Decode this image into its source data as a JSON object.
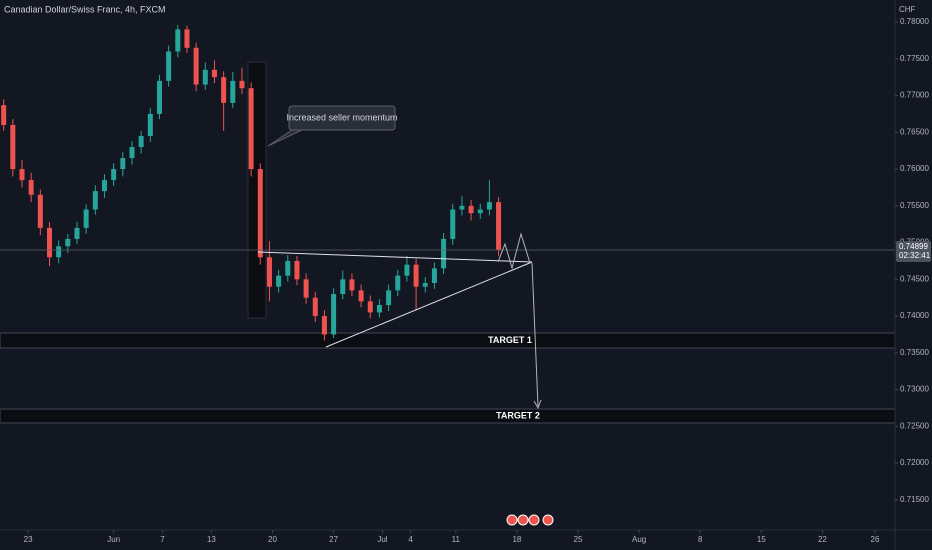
{
  "chart_data": {
    "type": "candlestick",
    "title": "Canadian Dollar/Swiss Franc, 4h, FXCM",
    "currency": "CHF",
    "up_color": "#26a69a",
    "down_color": "#ef5350",
    "grid": false,
    "xlim": [
      -2.3,
      70.94
    ],
    "xticks": [
      {
        "value": 0,
        "label": "23"
      },
      {
        "value": 7,
        "label": "Jun"
      },
      {
        "value": 11,
        "label": "7"
      },
      {
        "value": 15,
        "label": "13"
      },
      {
        "value": 20,
        "label": "20"
      },
      {
        "value": 25,
        "label": "27"
      },
      {
        "value": 29,
        "label": "Jul"
      },
      {
        "value": 31.3,
        "label": "4"
      },
      {
        "value": 35,
        "label": "11"
      },
      {
        "value": 40,
        "label": "18"
      },
      {
        "value": 45,
        "label": "25"
      },
      {
        "value": 50,
        "label": "Aug"
      },
      {
        "value": 55,
        "label": "8"
      },
      {
        "value": 60,
        "label": "15"
      },
      {
        "value": 65,
        "label": "22"
      },
      {
        "value": 69.3,
        "label": "26"
      }
    ],
    "ylim": [
      0.7109,
      0.783
    ],
    "yticks": [
      {
        "value": 0.78,
        "label": "0.78000"
      },
      {
        "value": 0.775,
        "label": "0.77500"
      },
      {
        "value": 0.77,
        "label": "0.77000"
      },
      {
        "value": 0.765,
        "label": "0.76500"
      },
      {
        "value": 0.76,
        "label": "0.76000"
      },
      {
        "value": 0.755,
        "label": "0.75500"
      },
      {
        "value": 0.75,
        "label": "0.75000"
      },
      {
        "value": 0.745,
        "label": "0.74500"
      },
      {
        "value": 0.74,
        "label": "0.74000"
      },
      {
        "value": 0.735,
        "label": "0.73500"
      },
      {
        "value": 0.73,
        "label": "0.73000"
      },
      {
        "value": 0.725,
        "label": "0.72500"
      },
      {
        "value": 0.72,
        "label": "0.72000"
      },
      {
        "value": 0.715,
        "label": "0.71500"
      }
    ],
    "last_price": 0.74899,
    "countdown": "02:32:41",
    "annotations": {
      "callout": "Increased seller momentum",
      "target_1": "TARGET 1",
      "target_2": "TARGET 2"
    },
    "candles": [
      [
        -2,
        0.7687,
        0.7695,
        0.7652,
        0.766
      ],
      [
        -1.25,
        0.766,
        0.7668,
        0.759,
        0.76
      ],
      [
        -0.5,
        0.76,
        0.7612,
        0.7575,
        0.7585
      ],
      [
        0.25,
        0.7585,
        0.7595,
        0.7555,
        0.7565
      ],
      [
        1,
        0.7565,
        0.7572,
        0.751,
        0.752
      ],
      [
        1.75,
        0.752,
        0.7528,
        0.7468,
        0.748
      ],
      [
        2.5,
        0.748,
        0.7503,
        0.7472,
        0.7495
      ],
      [
        3.25,
        0.7495,
        0.7512,
        0.7486,
        0.7505
      ],
      [
        4,
        0.7505,
        0.7528,
        0.7498,
        0.752
      ],
      [
        4.75,
        0.752,
        0.7552,
        0.7512,
        0.7545
      ],
      [
        5.5,
        0.7545,
        0.7578,
        0.7538,
        0.757
      ],
      [
        6.25,
        0.757,
        0.7593,
        0.7561,
        0.7585
      ],
      [
        7,
        0.7585,
        0.7608,
        0.7577,
        0.76
      ],
      [
        7.75,
        0.76,
        0.7623,
        0.759,
        0.7615
      ],
      [
        8.5,
        0.7615,
        0.7638,
        0.7606,
        0.763
      ],
      [
        9.25,
        0.763,
        0.7652,
        0.7621,
        0.7645
      ],
      [
        10,
        0.7645,
        0.7683,
        0.7637,
        0.7675
      ],
      [
        10.75,
        0.7675,
        0.7728,
        0.7668,
        0.772
      ],
      [
        11.5,
        0.772,
        0.7768,
        0.7712,
        0.776
      ],
      [
        12.25,
        0.776,
        0.7796,
        0.7752,
        0.779
      ],
      [
        13,
        0.779,
        0.7795,
        0.7758,
        0.7765
      ],
      [
        13.75,
        0.7765,
        0.7772,
        0.7706,
        0.7715
      ],
      [
        14.5,
        0.7715,
        0.7745,
        0.7708,
        0.7735
      ],
      [
        15.25,
        0.7735,
        0.7748,
        0.7717,
        0.7725
      ],
      [
        16,
        0.7725,
        0.7733,
        0.7652,
        0.769
      ],
      [
        16.75,
        0.769,
        0.7732,
        0.7683,
        0.772
      ],
      [
        17.5,
        0.772,
        0.7738,
        0.7702,
        0.771
      ],
      [
        18.25,
        0.771,
        0.7718,
        0.759,
        0.76
      ],
      [
        19,
        0.76,
        0.7608,
        0.747,
        0.748
      ],
      [
        19.75,
        0.748,
        0.7502,
        0.742,
        0.744
      ],
      [
        20.5,
        0.744,
        0.7463,
        0.7432,
        0.7455
      ],
      [
        21.25,
        0.7455,
        0.7483,
        0.7447,
        0.7475
      ],
      [
        22,
        0.7475,
        0.7482,
        0.7442,
        0.745
      ],
      [
        22.75,
        0.745,
        0.7458,
        0.7417,
        0.7425
      ],
      [
        23.5,
        0.7425,
        0.7433,
        0.7392,
        0.74
      ],
      [
        24.25,
        0.74,
        0.7408,
        0.7367,
        0.7375
      ],
      [
        25,
        0.7375,
        0.7438,
        0.737,
        0.743
      ],
      [
        25.75,
        0.743,
        0.7462,
        0.7423,
        0.745
      ],
      [
        26.5,
        0.745,
        0.7458,
        0.7427,
        0.7435
      ],
      [
        27.25,
        0.7435,
        0.7443,
        0.7412,
        0.742
      ],
      [
        28,
        0.742,
        0.7428,
        0.7397,
        0.7405
      ],
      [
        28.75,
        0.7405,
        0.7423,
        0.7398,
        0.7415
      ],
      [
        29.5,
        0.7415,
        0.7443,
        0.7407,
        0.7435
      ],
      [
        30.25,
        0.7435,
        0.7463,
        0.7427,
        0.7455
      ],
      [
        31,
        0.7455,
        0.7482,
        0.7447,
        0.747
      ],
      [
        31.75,
        0.747,
        0.7478,
        0.7408,
        0.744
      ],
      [
        32.5,
        0.744,
        0.7453,
        0.7432,
        0.7445
      ],
      [
        33.25,
        0.7445,
        0.7473,
        0.7437,
        0.7465
      ],
      [
        34,
        0.7465,
        0.7513,
        0.7457,
        0.7505
      ],
      [
        34.75,
        0.7505,
        0.7553,
        0.7497,
        0.7545
      ],
      [
        35.5,
        0.7545,
        0.7563,
        0.7537,
        0.755
      ],
      [
        36.25,
        0.755,
        0.7558,
        0.753,
        0.754
      ],
      [
        37,
        0.754,
        0.7553,
        0.7532,
        0.7545
      ],
      [
        37.75,
        0.7545,
        0.7585,
        0.7537,
        0.7555
      ],
      [
        38.5,
        0.7555,
        0.7562,
        0.7482,
        0.749
      ]
    ]
  }
}
